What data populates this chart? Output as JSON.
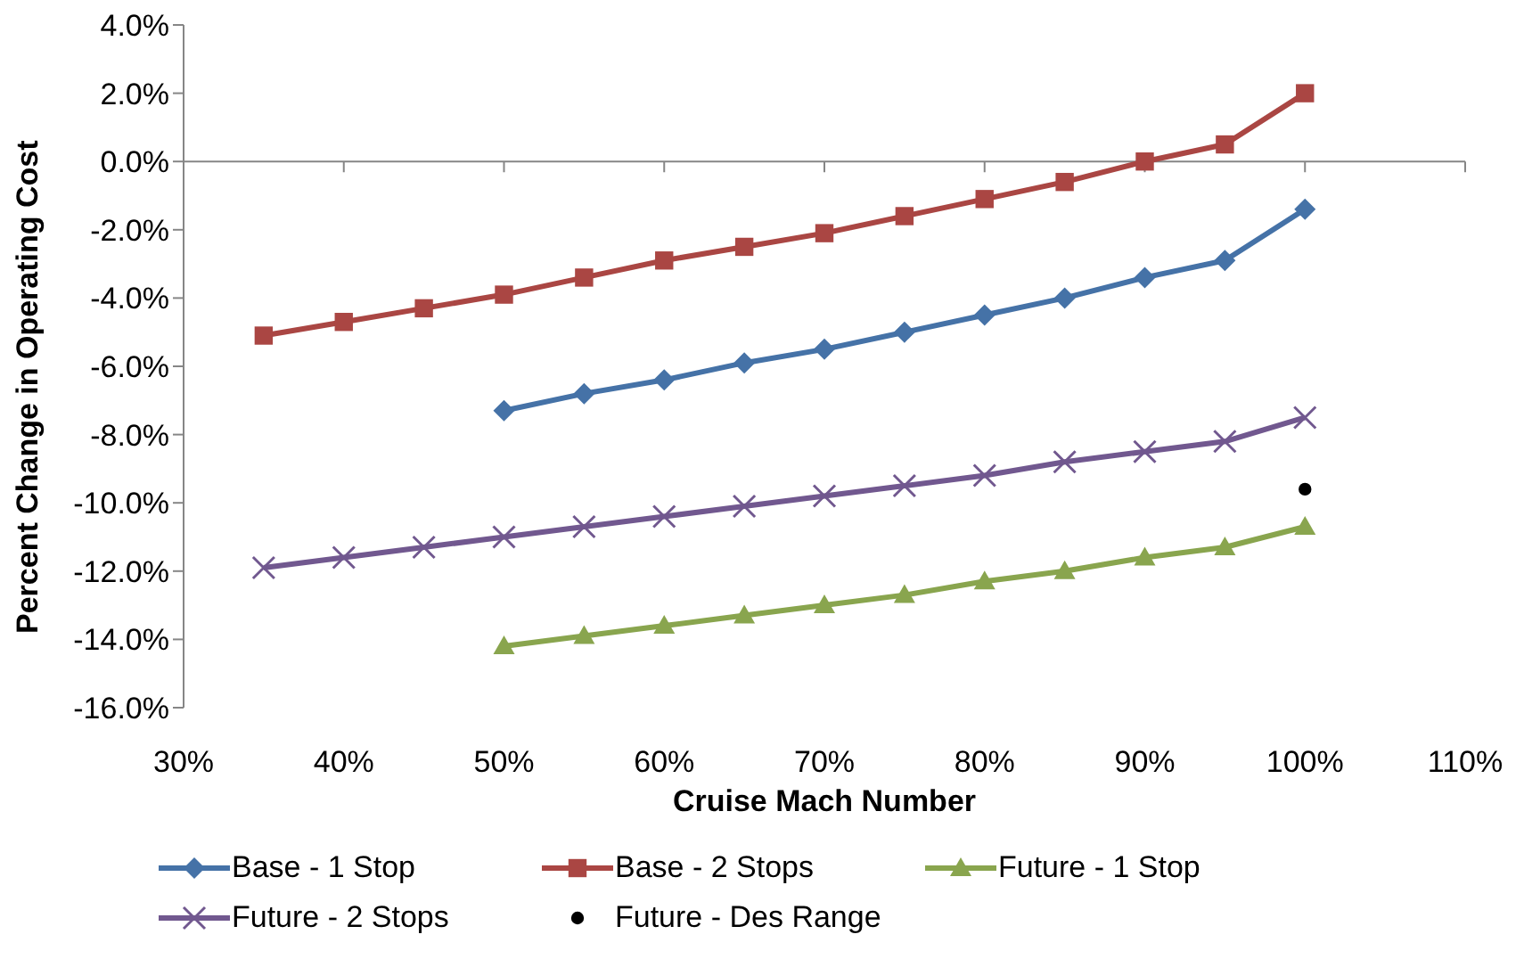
{
  "chart_data": {
    "type": "line",
    "xlabel": "Cruise Mach Number",
    "ylabel": "Percent Change in Operating Cost",
    "x": [
      35,
      40,
      45,
      50,
      55,
      60,
      65,
      70,
      75,
      80,
      85,
      90,
      95,
      100
    ],
    "series": [
      {
        "name": "Base - 1 Stop",
        "color": "#4572a7",
        "marker": "diamond",
        "values": [
          null,
          null,
          null,
          -7.3,
          -6.8,
          -6.4,
          -5.9,
          -5.5,
          -5.0,
          -4.5,
          -4.0,
          -3.4,
          -2.9,
          -1.4
        ]
      },
      {
        "name": "Base - 2 Stops",
        "color": "#aa4643",
        "marker": "square",
        "values": [
          -5.1,
          -4.7,
          -4.3,
          -3.9,
          -3.4,
          -2.9,
          -2.5,
          -2.1,
          -1.6,
          -1.1,
          -0.6,
          0.0,
          0.5,
          2.0
        ]
      },
      {
        "name": "Future - 1 Stop",
        "color": "#89a54e",
        "marker": "triangle",
        "values": [
          null,
          null,
          null,
          -14.2,
          -13.9,
          -13.6,
          -13.3,
          -13.0,
          -12.7,
          -12.3,
          -12.0,
          -11.6,
          -11.3,
          -10.7
        ]
      },
      {
        "name": "Future - 2 Stops",
        "color": "#71588f",
        "marker": "cross",
        "values": [
          -11.9,
          -11.6,
          -11.3,
          -11.0,
          -10.7,
          -10.4,
          -10.1,
          -9.8,
          -9.5,
          -9.2,
          -8.8,
          -8.5,
          -8.2,
          -7.5
        ]
      },
      {
        "name": "Future - Des Range",
        "type": "scatter",
        "color": "#000000",
        "marker": "circle",
        "x": [
          100
        ],
        "values": [
          -9.6
        ]
      }
    ],
    "xlim": [
      30,
      110
    ],
    "xticks": [
      {
        "value": 30,
        "label": "30%"
      },
      {
        "value": 40,
        "label": "40%"
      },
      {
        "value": 50,
        "label": "50%"
      },
      {
        "value": 60,
        "label": "60%"
      },
      {
        "value": 70,
        "label": "70%"
      },
      {
        "value": 80,
        "label": "80%"
      },
      {
        "value": 90,
        "label": "90%"
      },
      {
        "value": 100,
        "label": "100%"
      },
      {
        "value": 110,
        "label": "110%"
      }
    ],
    "ylim": [
      -16,
      4
    ],
    "yticks": [
      {
        "value": 4,
        "label": "4.0%"
      },
      {
        "value": 2,
        "label": "2.0%"
      },
      {
        "value": 0,
        "label": "0.0%"
      },
      {
        "value": -2,
        "label": "-2.0%"
      },
      {
        "value": -4,
        "label": "-4.0%"
      },
      {
        "value": -6,
        "label": "-6.0%"
      },
      {
        "value": -8,
        "label": "-8.0%"
      },
      {
        "value": -10,
        "label": "-10.0%"
      },
      {
        "value": -12,
        "label": "-12.0%"
      },
      {
        "value": -14,
        "label": "-14.0%"
      },
      {
        "value": -16,
        "label": "-16.0%"
      }
    ],
    "ref_lines": [
      {
        "axis": "y",
        "value": 0,
        "color": "#868686"
      }
    ],
    "grid": false,
    "legend": "bottom"
  }
}
